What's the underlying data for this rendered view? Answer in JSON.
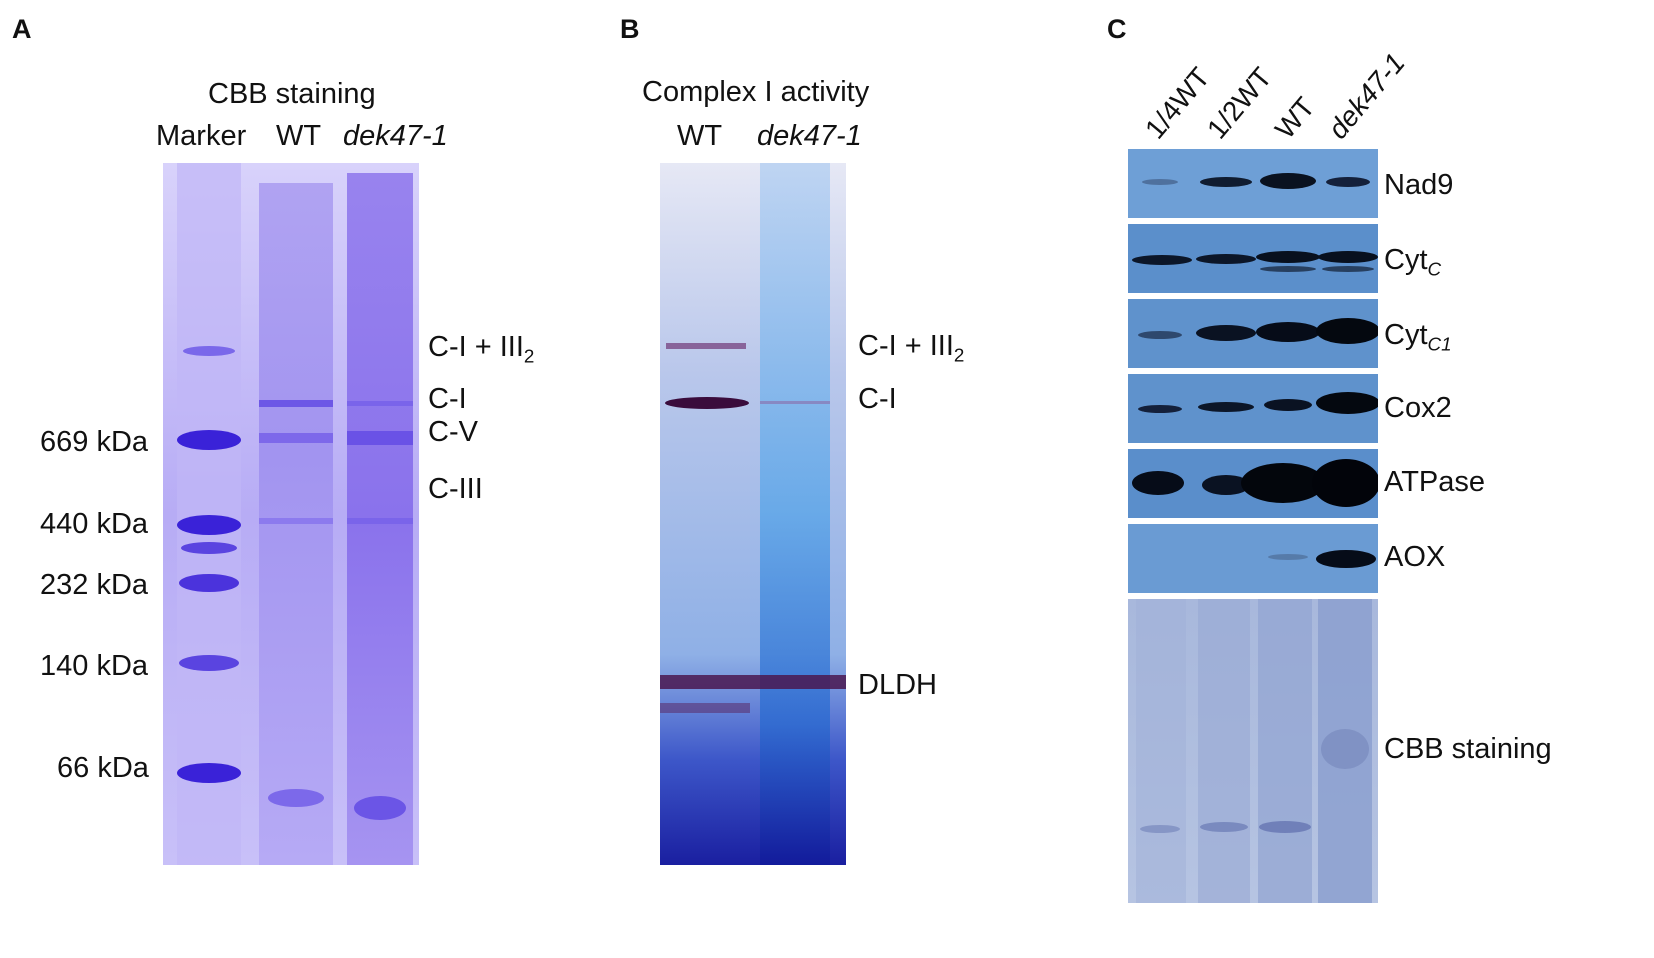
{
  "panel_a": {
    "letter": "A",
    "title": "CBB staining",
    "lanes": {
      "marker": "Marker",
      "wt": "WT",
      "mutant": "dek47-1"
    },
    "markers": [
      "669 kDa",
      "440 kDa",
      "232 kDa",
      "140 kDa",
      "66 kDa"
    ],
    "complexes": {
      "c1_iii2_main": "C-I + III",
      "c1_iii2_sub": "2",
      "c1": "C-I",
      "c5": "C-V",
      "c3": "C-III"
    }
  },
  "panel_b": {
    "letter": "B",
    "title": "Complex I activity",
    "lanes": {
      "wt": "WT",
      "mutant": "dek47-1"
    },
    "complexes": {
      "c1_iii2_main": "C-I + III",
      "c1_iii2_sub": "2",
      "c1": "C-I",
      "dldh": "DLDH"
    }
  },
  "panel_c": {
    "letter": "C",
    "lanes": [
      "1/4WT",
      "1/2WT",
      "WT",
      "dek47-1"
    ],
    "rows": {
      "nad9": "Nad9",
      "cytc_main": "Cyt",
      "cytc_sub": "C",
      "cytc1_main": "Cyt",
      "cytc1_sub": "C1",
      "cox2": "Cox2",
      "atpase": "ATPase",
      "aox": "AOX",
      "cbb": "CBB staining"
    }
  },
  "colors": {
    "coomassie": "#8a7df0",
    "blot": "#5f94cf",
    "activity": "#4b86cc"
  }
}
